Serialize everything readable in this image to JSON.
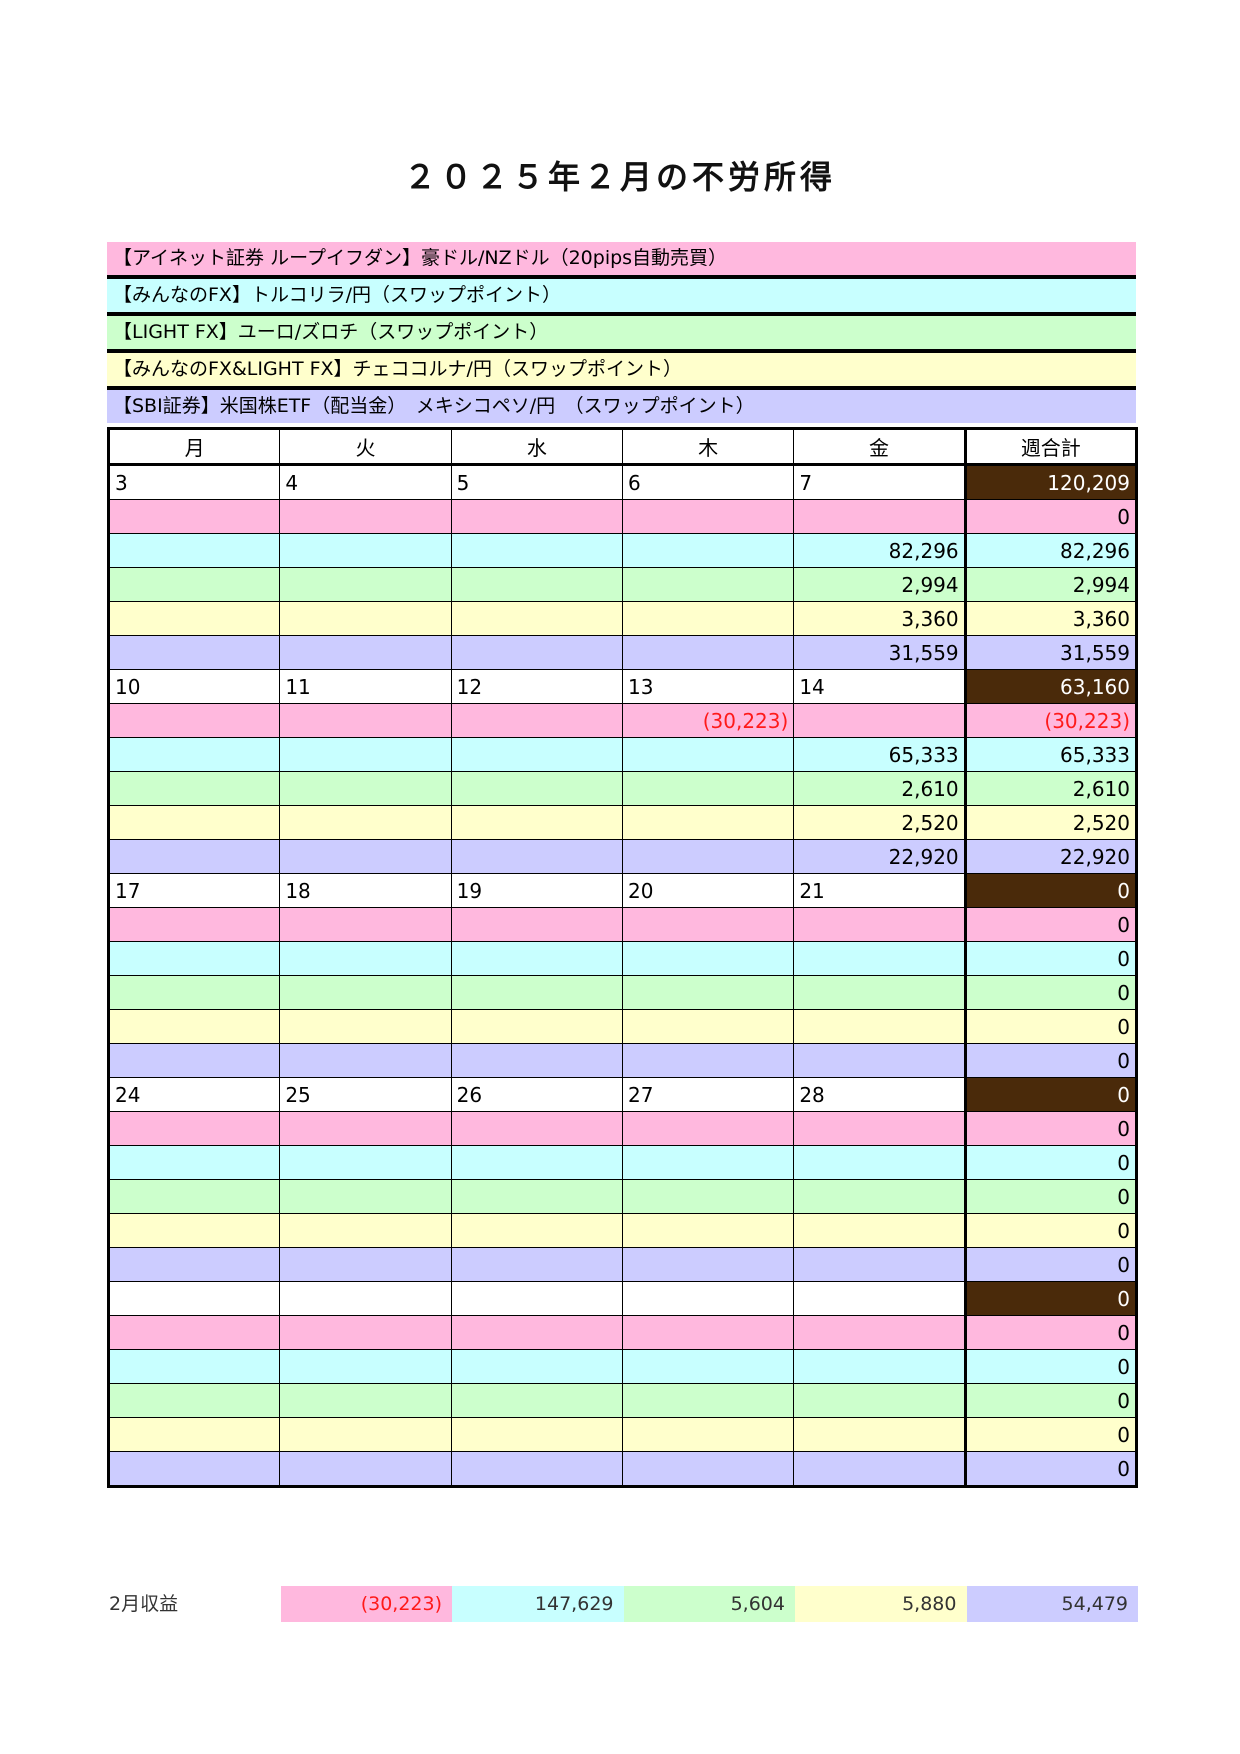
{
  "title": "２０２５年２月の不労所得",
  "colors": {
    "pink": "#ffb8de",
    "cyan": "#c8ffff",
    "green": "#ccffcc",
    "yellow": "#ffffcc",
    "purple": "#ccccff",
    "week_total": "#4a2a0a",
    "negative": "#ff1a1a"
  },
  "categories": [
    "【アイネット証券 ループイフダン】豪ドル/NZドル（20pips自動売買）",
    "【みんなのFX】トルコリラ/円（スワップポイント）",
    "【LIGHT FX】ユーロ/ズロチ（スワップポイント）",
    "【みんなのFX&LIGHT FX】チェココルナ/円（スワップポイント）",
    "【SBI証券】米国株ETF（配当金）　メキシコペソ/円　（スワップポイント）"
  ],
  "headers": [
    "月",
    "火",
    "水",
    "木",
    "金",
    "週合計"
  ],
  "weeks": [
    {
      "dates": [
        "3",
        "4",
        "5",
        "6",
        "7"
      ],
      "total": "120,209",
      "rows": [
        [
          "",
          "",
          "",
          "",
          "",
          "0"
        ],
        [
          "",
          "",
          "",
          "",
          "82,296",
          "82,296"
        ],
        [
          "",
          "",
          "",
          "",
          "2,994",
          "2,994"
        ],
        [
          "",
          "",
          "",
          "",
          "3,360",
          "3,360"
        ],
        [
          "",
          "",
          "",
          "",
          "31,559",
          "31,559"
        ]
      ]
    },
    {
      "dates": [
        "10",
        "11",
        "12",
        "13",
        "14"
      ],
      "total": "63,160",
      "rows": [
        [
          "",
          "",
          "",
          "(30,223)",
          "",
          "(30,223)"
        ],
        [
          "",
          "",
          "",
          "",
          "65,333",
          "65,333"
        ],
        [
          "",
          "",
          "",
          "",
          "2,610",
          "2,610"
        ],
        [
          "",
          "",
          "",
          "",
          "2,520",
          "2,520"
        ],
        [
          "",
          "",
          "",
          "",
          "22,920",
          "22,920"
        ]
      ]
    },
    {
      "dates": [
        "17",
        "18",
        "19",
        "20",
        "21"
      ],
      "total": "0",
      "rows": [
        [
          "",
          "",
          "",
          "",
          "",
          "0"
        ],
        [
          "",
          "",
          "",
          "",
          "",
          "0"
        ],
        [
          "",
          "",
          "",
          "",
          "",
          "0"
        ],
        [
          "",
          "",
          "",
          "",
          "",
          "0"
        ],
        [
          "",
          "",
          "",
          "",
          "",
          "0"
        ]
      ]
    },
    {
      "dates": [
        "24",
        "25",
        "26",
        "27",
        "28"
      ],
      "total": "0",
      "rows": [
        [
          "",
          "",
          "",
          "",
          "",
          "0"
        ],
        [
          "",
          "",
          "",
          "",
          "",
          "0"
        ],
        [
          "",
          "",
          "",
          "",
          "",
          "0"
        ],
        [
          "",
          "",
          "",
          "",
          "",
          "0"
        ],
        [
          "",
          "",
          "",
          "",
          "",
          "0"
        ]
      ]
    },
    {
      "dates": [
        "",
        "",
        "",
        "",
        ""
      ],
      "total": "0",
      "rows": [
        [
          "",
          "",
          "",
          "",
          "",
          "0"
        ],
        [
          "",
          "",
          "",
          "",
          "",
          "0"
        ],
        [
          "",
          "",
          "",
          "",
          "",
          "0"
        ],
        [
          "",
          "",
          "",
          "",
          "",
          "0"
        ],
        [
          "",
          "",
          "",
          "",
          "",
          "0"
        ]
      ]
    }
  ],
  "summary": {
    "label": "2月収益",
    "values": [
      "(30,223)",
      "147,629",
      "5,604",
      "5,880",
      "54,479"
    ]
  }
}
